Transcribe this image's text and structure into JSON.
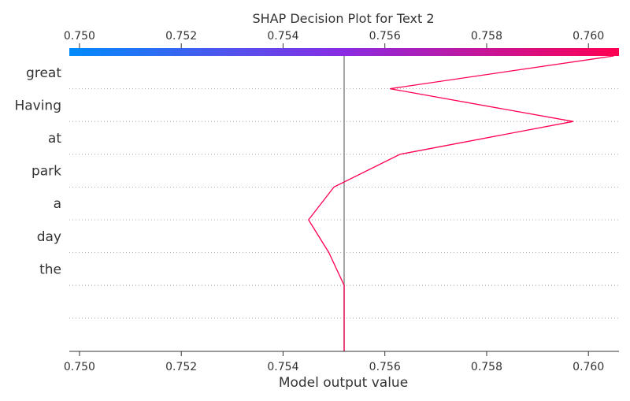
{
  "chart_data": {
    "type": "line",
    "title": "SHAP Decision Plot for Text 2",
    "xlabel": "Model output value",
    "ylabel": "",
    "xlim": [
      0.7498,
      0.7606
    ],
    "xticks": [
      "0.750",
      "0.752",
      "0.754",
      "0.756",
      "0.758",
      "0.760"
    ],
    "xtick_values": [
      0.75,
      0.752,
      0.754,
      0.756,
      0.758,
      0.76
    ],
    "base_value": 0.7552,
    "features": [
      "great",
      "Having",
      "at",
      "park",
      "a",
      "day",
      "the",
      "",
      ""
    ],
    "path": {
      "x": [
        0.7552,
        0.7552,
        0.7552,
        0.7549,
        0.7545,
        0.755,
        0.7563,
        0.7597,
        0.7561,
        0.7605
      ],
      "y_level": [
        9,
        8,
        7,
        6,
        5,
        4,
        3,
        2,
        1,
        0
      ]
    },
    "colorbar": {
      "from": "#008bfb",
      "mid": "#8a2be2",
      "to": "#ff0051"
    },
    "grid": "dotted-rows",
    "line_color": "#ff0051",
    "base_line_color": "#888888"
  }
}
